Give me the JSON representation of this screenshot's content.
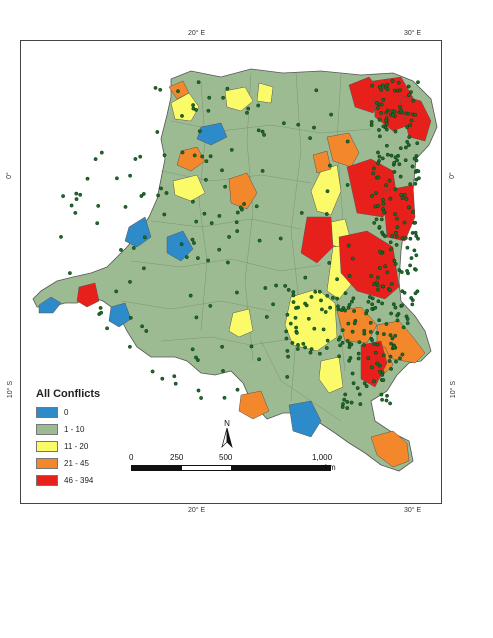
{
  "graticule": {
    "top": [
      "20° E",
      "30° E"
    ],
    "bottom": [
      "20° E",
      "30° E"
    ],
    "left": [
      "0°",
      "10° S"
    ],
    "right": [
      "0°",
      "10° S"
    ]
  },
  "legend": {
    "title": "All Conflicts",
    "items": [
      {
        "label": "0",
        "color": "#2e8bc9"
      },
      {
        "label": "1 - 10",
        "color": "#9dbb93"
      },
      {
        "label": "11 - 20",
        "color": "#fbfb6a"
      },
      {
        "label": "21 - 45",
        "color": "#f2872b"
      },
      {
        "label": "46 - 394",
        "color": "#e8201c"
      }
    ]
  },
  "scale_bar": {
    "labels": [
      "0",
      "250",
      "500",
      "1,000"
    ],
    "unit": "km"
  },
  "north_arrow": {
    "label": "N"
  },
  "colors": {
    "border": "#555555",
    "point": "#1a6b2a",
    "point_outline": "#0a2a0a"
  }
}
